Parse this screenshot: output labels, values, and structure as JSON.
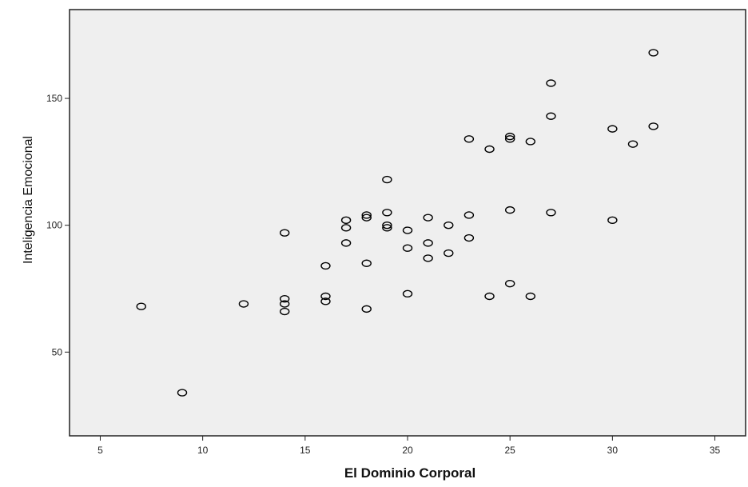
{
  "chart_data": {
    "type": "scatter",
    "xlabel": "El Dominio Corporal",
    "ylabel": "Inteligencia Emocional",
    "xlim": [
      3.5,
      36.5
    ],
    "ylim": [
      17,
      185
    ],
    "x_ticks": [
      5,
      10,
      15,
      20,
      25,
      30,
      35
    ],
    "y_ticks": [
      50,
      100,
      150
    ],
    "grid": false,
    "plot_background": "#efefef",
    "marker": "open-circle",
    "marker_color": "#000000",
    "points": [
      {
        "x": 7,
        "y": 68
      },
      {
        "x": 9,
        "y": 34
      },
      {
        "x": 12,
        "y": 69
      },
      {
        "x": 14,
        "y": 97
      },
      {
        "x": 14,
        "y": 71
      },
      {
        "x": 14,
        "y": 69
      },
      {
        "x": 14,
        "y": 66
      },
      {
        "x": 16,
        "y": 84
      },
      {
        "x": 16,
        "y": 72
      },
      {
        "x": 16,
        "y": 70
      },
      {
        "x": 17,
        "y": 102
      },
      {
        "x": 17,
        "y": 99
      },
      {
        "x": 17,
        "y": 93
      },
      {
        "x": 18,
        "y": 104
      },
      {
        "x": 18,
        "y": 103
      },
      {
        "x": 18,
        "y": 85
      },
      {
        "x": 18,
        "y": 67
      },
      {
        "x": 19,
        "y": 118
      },
      {
        "x": 19,
        "y": 105
      },
      {
        "x": 19,
        "y": 100
      },
      {
        "x": 19,
        "y": 99
      },
      {
        "x": 20,
        "y": 98
      },
      {
        "x": 20,
        "y": 91
      },
      {
        "x": 20,
        "y": 73
      },
      {
        "x": 21,
        "y": 103
      },
      {
        "x": 21,
        "y": 93
      },
      {
        "x": 21,
        "y": 87
      },
      {
        "x": 22,
        "y": 100
      },
      {
        "x": 22,
        "y": 89
      },
      {
        "x": 23,
        "y": 134
      },
      {
        "x": 23,
        "y": 104
      },
      {
        "x": 23,
        "y": 95
      },
      {
        "x": 24,
        "y": 130
      },
      {
        "x": 24,
        "y": 72
      },
      {
        "x": 25,
        "y": 135
      },
      {
        "x": 25,
        "y": 134
      },
      {
        "x": 25,
        "y": 106
      },
      {
        "x": 25,
        "y": 77
      },
      {
        "x": 26,
        "y": 133
      },
      {
        "x": 26,
        "y": 72
      },
      {
        "x": 27,
        "y": 156
      },
      {
        "x": 27,
        "y": 143
      },
      {
        "x": 27,
        "y": 105
      },
      {
        "x": 30,
        "y": 138
      },
      {
        "x": 30,
        "y": 102
      },
      {
        "x": 31,
        "y": 132
      },
      {
        "x": 32,
        "y": 168
      },
      {
        "x": 32,
        "y": 139
      }
    ]
  }
}
